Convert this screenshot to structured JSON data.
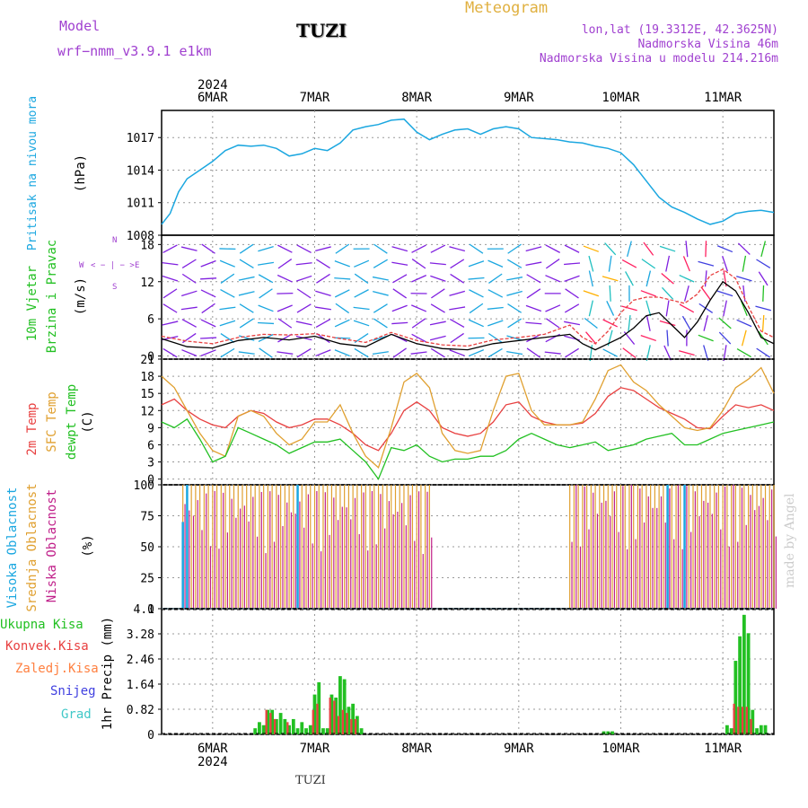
{
  "header": {
    "model_label": "Model",
    "model_name": "wrf−nmm_v3.9.1  e1km",
    "station": "TUZI",
    "product": "Meteogram",
    "lonlat": "lon,lat (19.3312E, 42.3625N)",
    "elevation": "Nadmorska Visina 46m",
    "model_elevation": "Nadmorska Visina u modelu 214.216m"
  },
  "footer": {
    "station": "TUZI",
    "credit": "made by Angel"
  },
  "colors": {
    "pressure": "#1ba7e0",
    "wind_label": "#22c022",
    "temp2m": "#e84040",
    "sfc": "#e0a030",
    "dewpt": "#22c022",
    "cloud_high": "#1ba7e0",
    "cloud_mid": "#e0a030",
    "cloud_low": "#c0208a",
    "precip_total": "#22c022",
    "precip_conv": "#e84040",
    "precip_freez": "#ff8040",
    "snow": "#4040e0",
    "grad": "#40c8c8",
    "wind_arrow": "#8020e0"
  },
  "time_axis": {
    "year": "2024",
    "days": [
      "6MAR",
      "7MAR",
      "8MAR",
      "9MAR",
      "10MAR",
      "11MAR"
    ],
    "start_hour": 0,
    "end_hour": 144
  },
  "panel_labels": {
    "pressure_title": "Pritisak na nivou mora",
    "pressure_unit": "(hPa)",
    "wind_title1": "10m Vjetar",
    "wind_title2": "Brzina i Pravac",
    "wind_unit": "(m/s)",
    "compass_n": "N",
    "compass_s": "S",
    "compass_w": "W",
    "compass_e": "E",
    "temp_title1": "2m Temp",
    "temp_title2": "SFC Temp",
    "temp_title3": "dewpt Temp",
    "temp_unit": "(C)",
    "cloud_title1": "Visoka Oblacnost",
    "cloud_title2": "Srednja Oblacnost",
    "cloud_title3": "Niska Oblacnost",
    "cloud_unit": "(%)",
    "precip_l1": "Ukupna Kisa",
    "precip_l2": "Konvek.Kisa",
    "precip_l3": "Zaledj.Kisa",
    "precip_l4": "Snijeg",
    "precip_l5": "Grad",
    "precip_unit": "1hr Precip (mm)"
  },
  "chart_data": [
    {
      "type": "line",
      "title": "Pritisak na nivou mora",
      "ylabel": "(hPa)",
      "ylim": [
        1008,
        1019.5
      ],
      "yticks": [
        1008,
        1011,
        1014,
        1017
      ],
      "x": [
        0,
        2,
        4,
        6,
        9,
        12,
        15,
        18,
        21,
        24,
        27,
        30,
        33,
        36,
        39,
        42,
        45,
        48,
        51,
        54,
        57,
        60,
        63,
        66,
        69,
        72,
        75,
        78,
        81,
        84,
        87,
        90,
        93,
        96,
        99,
        102,
        105,
        108,
        111,
        114,
        117,
        120,
        123,
        126,
        129,
        132,
        135,
        138,
        141,
        144
      ],
      "series": [
        {
          "values": [
            1009.0,
            1010.0,
            1012.0,
            1013.2,
            1014.0,
            1014.8,
            1015.8,
            1016.3,
            1016.2,
            1016.3,
            1016.0,
            1015.3,
            1015.5,
            1016.0,
            1015.8,
            1016.5,
            1017.7,
            1018.0,
            1018.2,
            1018.6,
            1018.7,
            1017.5,
            1016.8,
            1017.3,
            1017.7,
            1017.8,
            1017.3,
            1017.8,
            1018.0,
            1017.8,
            1017.0,
            1016.9,
            1016.8,
            1016.6,
            1016.5,
            1016.2,
            1016.0,
            1015.6,
            1014.5,
            1013.0,
            1011.5,
            1010.6,
            1010.1,
            1009.5,
            1009.0,
            1009.3,
            1010.0,
            1010.2,
            1010.3,
            1010.1
          ]
        }
      ]
    },
    {
      "type": "line",
      "title": "10m Vjetar Brzina i Pravac",
      "ylabel": "(m/s)",
      "ylim": [
        -0.5,
        19.5
      ],
      "yticks": [
        0,
        6,
        12,
        18
      ],
      "x": [
        0,
        6,
        12,
        18,
        24,
        30,
        36,
        42,
        48,
        54,
        60,
        66,
        72,
        78,
        84,
        90,
        96,
        99,
        102,
        105,
        108,
        111,
        114,
        117,
        120,
        123,
        126,
        129,
        132,
        135,
        138,
        141,
        144
      ],
      "series": [
        {
          "name": "black",
          "values": [
            2.8,
            1.5,
            1.3,
            2.5,
            3.0,
            2.6,
            3.2,
            2.0,
            1.5,
            3.5,
            2.0,
            1.2,
            1.0,
            2.0,
            2.5,
            3.0,
            3.5,
            2.0,
            1.0,
            2.0,
            3.0,
            4.5,
            6.5,
            7.0,
            5.0,
            3.0,
            5.5,
            9.0,
            12.0,
            10.5,
            7.0,
            3.0,
            2.0
          ]
        },
        {
          "name": "red",
          "values": [
            3.2,
            2.4,
            2.0,
            3.0,
            3.5,
            3.4,
            3.6,
            2.8,
            2.2,
            3.8,
            2.5,
            1.8,
            1.6,
            2.6,
            3.0,
            3.5,
            5.0,
            3.0,
            2.0,
            4.0,
            7.0,
            9.0,
            9.5,
            9.5,
            9.0,
            8.5,
            10.0,
            13.0,
            14.0,
            12.5,
            8.0,
            4.0,
            3.0
          ]
        }
      ]
    },
    {
      "type": "line",
      "title": "2m Temp / SFC Temp / dewpt Temp",
      "ylabel": "(C)",
      "ylim": [
        -1,
        21
      ],
      "yticks": [
        0,
        3,
        6,
        9,
        12,
        15,
        18,
        21
      ],
      "x": [
        0,
        3,
        6,
        9,
        12,
        15,
        18,
        21,
        24,
        27,
        30,
        33,
        36,
        39,
        42,
        45,
        48,
        51,
        54,
        57,
        60,
        63,
        66,
        69,
        72,
        75,
        78,
        81,
        84,
        87,
        90,
        93,
        96,
        99,
        102,
        105,
        108,
        111,
        114,
        117,
        120,
        123,
        126,
        129,
        132,
        135,
        138,
        141,
        144
      ],
      "series": [
        {
          "name": "2m Temp",
          "values": [
            13.0,
            14.0,
            12.0,
            10.5,
            9.5,
            9.0,
            11.0,
            12.0,
            11.5,
            10.0,
            9.0,
            9.5,
            10.5,
            10.5,
            9.5,
            8.0,
            6.0,
            5.0,
            8.0,
            12.0,
            13.5,
            12.0,
            9.0,
            8.0,
            7.5,
            8.0,
            10.0,
            13.0,
            13.5,
            11.0,
            10.0,
            9.5,
            9.5,
            9.8,
            11.5,
            14.5,
            16.0,
            15.5,
            14.0,
            12.5,
            11.5,
            10.5,
            9.0,
            8.8,
            11.0,
            13.0,
            12.5,
            13.0,
            12.0
          ]
        },
        {
          "name": "SFC Temp",
          "values": [
            18.0,
            16.0,
            12.0,
            8.0,
            5.0,
            4.0,
            11.0,
            12.0,
            11.0,
            8.0,
            6.0,
            7.0,
            10.0,
            10.0,
            13.0,
            8.0,
            4.0,
            2.0,
            9.0,
            17.0,
            18.5,
            16.0,
            8.0,
            5.0,
            4.5,
            5.0,
            12.0,
            18.0,
            18.5,
            12.0,
            9.5,
            9.5,
            9.5,
            10.0,
            14.0,
            19.0,
            20.0,
            17.0,
            15.5,
            13.0,
            11.0,
            9.0,
            8.5,
            9.0,
            12.0,
            16.0,
            17.5,
            19.5,
            15.0
          ]
        },
        {
          "name": "dewpt Temp",
          "values": [
            10.0,
            9.0,
            10.5,
            7.0,
            3.0,
            4.0,
            9.0,
            8.0,
            7.0,
            6.0,
            4.5,
            5.5,
            6.5,
            6.5,
            7.0,
            5.0,
            3.0,
            0.0,
            5.5,
            5.0,
            6.0,
            4.0,
            3.0,
            3.5,
            3.5,
            4.0,
            4.0,
            5.0,
            7.0,
            8.0,
            7.0,
            6.0,
            5.5,
            6.0,
            6.5,
            5.0,
            5.5,
            6.0,
            7.0,
            7.5,
            8.0,
            6.0,
            6.0,
            7.0,
            8.0,
            8.5,
            9.0,
            9.5,
            10.0
          ]
        }
      ]
    },
    {
      "type": "bar",
      "title": "Visoka / Srednja / Niska Oblacnost",
      "ylabel": "(%)",
      "ylim": [
        0,
        100
      ],
      "yticks": [
        0,
        25,
        50,
        75,
        100
      ],
      "segments": [
        {
          "x0": 5,
          "x1": 63,
          "mid": 100,
          "low_max": 95
        },
        {
          "x0": 96,
          "x1": 119,
          "mid": 100,
          "low_max": 100
        },
        {
          "x0": 119,
          "x1": 144,
          "mid": 100,
          "low_max": 100
        }
      ],
      "high_spikes": [
        {
          "x": 5,
          "v": 70
        },
        {
          "x": 6,
          "v": 100
        },
        {
          "x": 32,
          "v": 100
        },
        {
          "x": 119,
          "v": 100
        },
        {
          "x": 123,
          "v": 100
        }
      ]
    },
    {
      "type": "bar",
      "title": "1hr Precip",
      "ylabel": "1hr Precip (mm)",
      "ylim": [
        0,
        4.1
      ],
      "yticks": [
        0,
        0.82,
        1.64,
        2.46,
        3.28,
        4.1
      ],
      "series": [
        {
          "name": "Ukupna Kisa",
          "x": [
            22,
            23,
            24,
            25,
            26,
            27,
            28,
            29,
            30,
            31,
            32,
            33,
            34,
            35,
            36,
            37,
            38,
            39,
            40,
            41,
            42,
            43,
            44,
            45,
            46,
            47,
            104,
            105,
            106,
            133,
            134,
            135,
            136,
            137,
            138,
            139,
            140,
            141,
            142
          ],
          "values": [
            0.2,
            0.4,
            0.3,
            0.8,
            0.8,
            0.5,
            0.7,
            0.5,
            0.3,
            0.5,
            0.2,
            0.4,
            0.2,
            0.3,
            1.3,
            1.7,
            0.2,
            0.2,
            1.3,
            1.2,
            1.9,
            1.8,
            0.9,
            1.0,
            0.6,
            0.2,
            0.1,
            0.1,
            0.1,
            0.3,
            0.2,
            2.4,
            3.2,
            3.9,
            3.3,
            0.8,
            0.2,
            0.3,
            0.3
          ]
        },
        {
          "name": "Konvek.Kisa",
          "x": [
            25,
            26,
            27,
            30,
            36,
            37,
            40,
            41,
            42,
            43,
            44,
            45,
            46,
            135,
            136,
            137,
            138,
            139
          ],
          "values": [
            0.8,
            0.7,
            0.5,
            0.4,
            0.8,
            1.0,
            1.2,
            1.1,
            0.6,
            0.8,
            0.7,
            0.5,
            0.5,
            1.0,
            0.9,
            0.9,
            0.9,
            0.5
          ]
        }
      ]
    }
  ]
}
